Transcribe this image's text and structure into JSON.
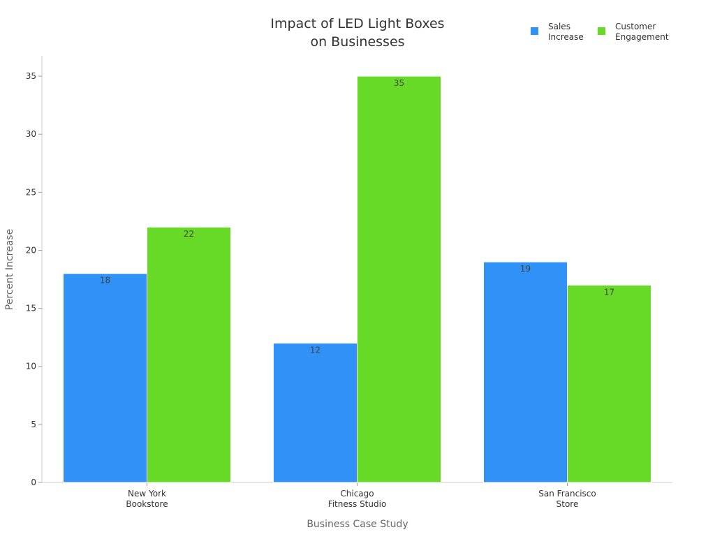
{
  "chart_data": {
    "type": "bar",
    "title": [
      "Impact of LED Light Boxes",
      "on Businesses"
    ],
    "xlabel": "Business Case Study",
    "ylabel": "Percent Increase",
    "categories": [
      [
        "New York",
        "Bookstore"
      ],
      [
        "Chicago",
        "Fitness Studio"
      ],
      [
        "San Francisco",
        "Store"
      ]
    ],
    "series": [
      {
        "name": [
          "Sales",
          "Increase"
        ],
        "values": [
          18,
          12,
          19
        ],
        "color": "#3091f6"
      },
      {
        "name": [
          "Customer",
          "Engagement"
        ],
        "values": [
          22,
          35,
          17
        ],
        "color": "#67da28"
      }
    ],
    "ylim": [
      0,
      36.75
    ],
    "yticks": [
      0,
      5,
      10,
      15,
      20,
      25,
      30,
      35
    ],
    "grid": false,
    "legend": "top-right",
    "data_labels": true
  }
}
